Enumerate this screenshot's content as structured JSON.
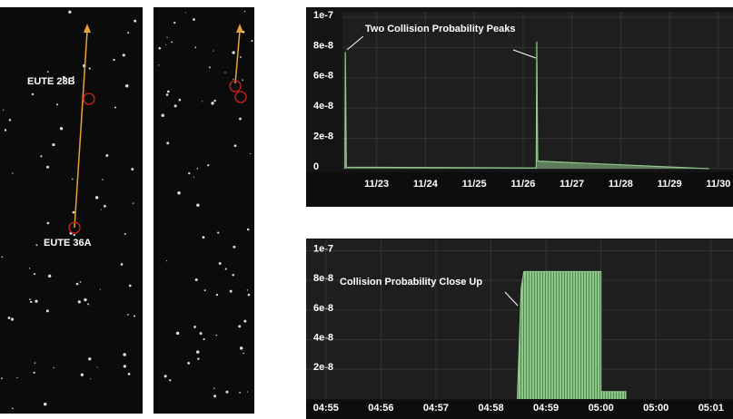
{
  "images": [
    {
      "labels": [
        "EUTE 28B",
        "EUTE 36A"
      ]
    },
    {
      "labels": []
    }
  ],
  "chart_data": [
    {
      "type": "area",
      "title": "Two Collision Probability Peaks",
      "color": "#8fc98a",
      "x": [
        22.35,
        22.36,
        22.38,
        26.27,
        26.28,
        26.3,
        29.8,
        29.81
      ],
      "values": [
        0,
        7.7e-08,
        1e-09,
        5e-10,
        8.4e-08,
        5e-09,
        0,
        0
      ],
      "xlim": [
        22.3,
        30.3
      ],
      "xticks": [
        {
          "value": 23,
          "label": "11/23"
        },
        {
          "value": 24,
          "label": "11/24"
        },
        {
          "value": 25,
          "label": "11/25"
        },
        {
          "value": 26,
          "label": "11/26"
        },
        {
          "value": 27,
          "label": "11/27"
        },
        {
          "value": 28,
          "label": "11/28"
        },
        {
          "value": 29,
          "label": "11/29"
        },
        {
          "value": 30,
          "label": "11/30"
        }
      ],
      "ylim": [
        0,
        1e-07
      ],
      "yticks": [
        0,
        {
          "value": 2e-08,
          "label": "2e-8"
        },
        {
          "value": 4e-08,
          "label": "4e-8"
        },
        {
          "value": 6e-08,
          "label": "6e-8"
        },
        {
          "value": 8e-08,
          "label": "8e-8"
        },
        {
          "value": 1e-07,
          "label": "1e-7"
        }
      ],
      "grid": true
    },
    {
      "type": "area",
      "title": "Collision Probability Close Up",
      "color": "#8fc98a",
      "x": [
        3.48,
        3.55,
        3.6,
        5.0,
        5.0,
        5.45,
        5.45
      ],
      "values": [
        0,
        7.5e-08,
        8.6e-08,
        8.6e-08,
        5e-09,
        5e-09,
        0
      ],
      "xlim": [
        -0.36,
        7.4
      ],
      "xticks": [
        {
          "value": 0,
          "label": "04:55"
        },
        {
          "value": 1,
          "label": "04:56"
        },
        {
          "value": 2,
          "label": "04:57"
        },
        {
          "value": 3,
          "label": "04:58"
        },
        {
          "value": 4,
          "label": "04:59"
        },
        {
          "value": 5,
          "label": "05:00"
        },
        {
          "value": 6,
          "label": "05:00"
        },
        {
          "value": 7,
          "label": "05:01"
        }
      ],
      "ylim": [
        0,
        1.04e-07
      ],
      "yticks": [
        {
          "value": 2e-08,
          "label": "2e-8"
        },
        {
          "value": 4e-08,
          "label": "4e-8"
        },
        {
          "value": 6e-08,
          "label": "6e-8"
        },
        {
          "value": 8e-08,
          "label": "8e-8"
        },
        {
          "value": 1e-07,
          "label": "1e-7"
        }
      ],
      "grid": true
    }
  ]
}
